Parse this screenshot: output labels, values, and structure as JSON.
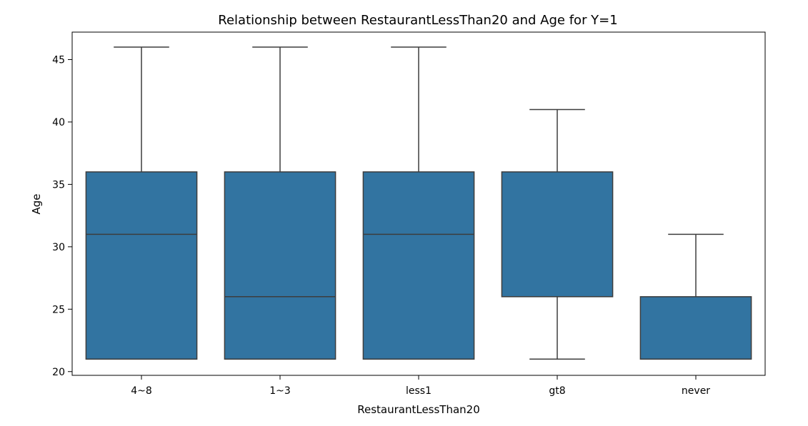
{
  "chart_data": {
    "type": "box",
    "title": "Relationship between RestaurantLessThan20 and Age for Y=1",
    "xlabel": "RestaurantLessThan20",
    "ylabel": "Age",
    "ylim": [
      19.7,
      47.2
    ],
    "yticks": [
      20,
      25,
      30,
      35,
      40,
      45
    ],
    "categories": [
      "4~8",
      "1~3",
      "less1",
      "gt8",
      "never"
    ],
    "boxes": [
      {
        "category": "4~8",
        "whisker_low": 21,
        "q1": 21,
        "median": 31,
        "q3": 36,
        "whisker_high": 46
      },
      {
        "category": "1~3",
        "whisker_low": 21,
        "q1": 21,
        "median": 26,
        "q3": 36,
        "whisker_high": 46
      },
      {
        "category": "less1",
        "whisker_low": 21,
        "q1": 21,
        "median": 31,
        "q3": 36,
        "whisker_high": 46
      },
      {
        "category": "gt8",
        "whisker_low": 21,
        "q1": 26,
        "median": 26,
        "q3": 36,
        "whisker_high": 41
      },
      {
        "category": "never",
        "whisker_low": 21,
        "q1": 21,
        "median": 21,
        "q3": 26,
        "whisker_high": 31
      }
    ],
    "grid": false,
    "colors": {
      "box_fill": "#3274a1",
      "line": "#3d3d3d"
    }
  }
}
